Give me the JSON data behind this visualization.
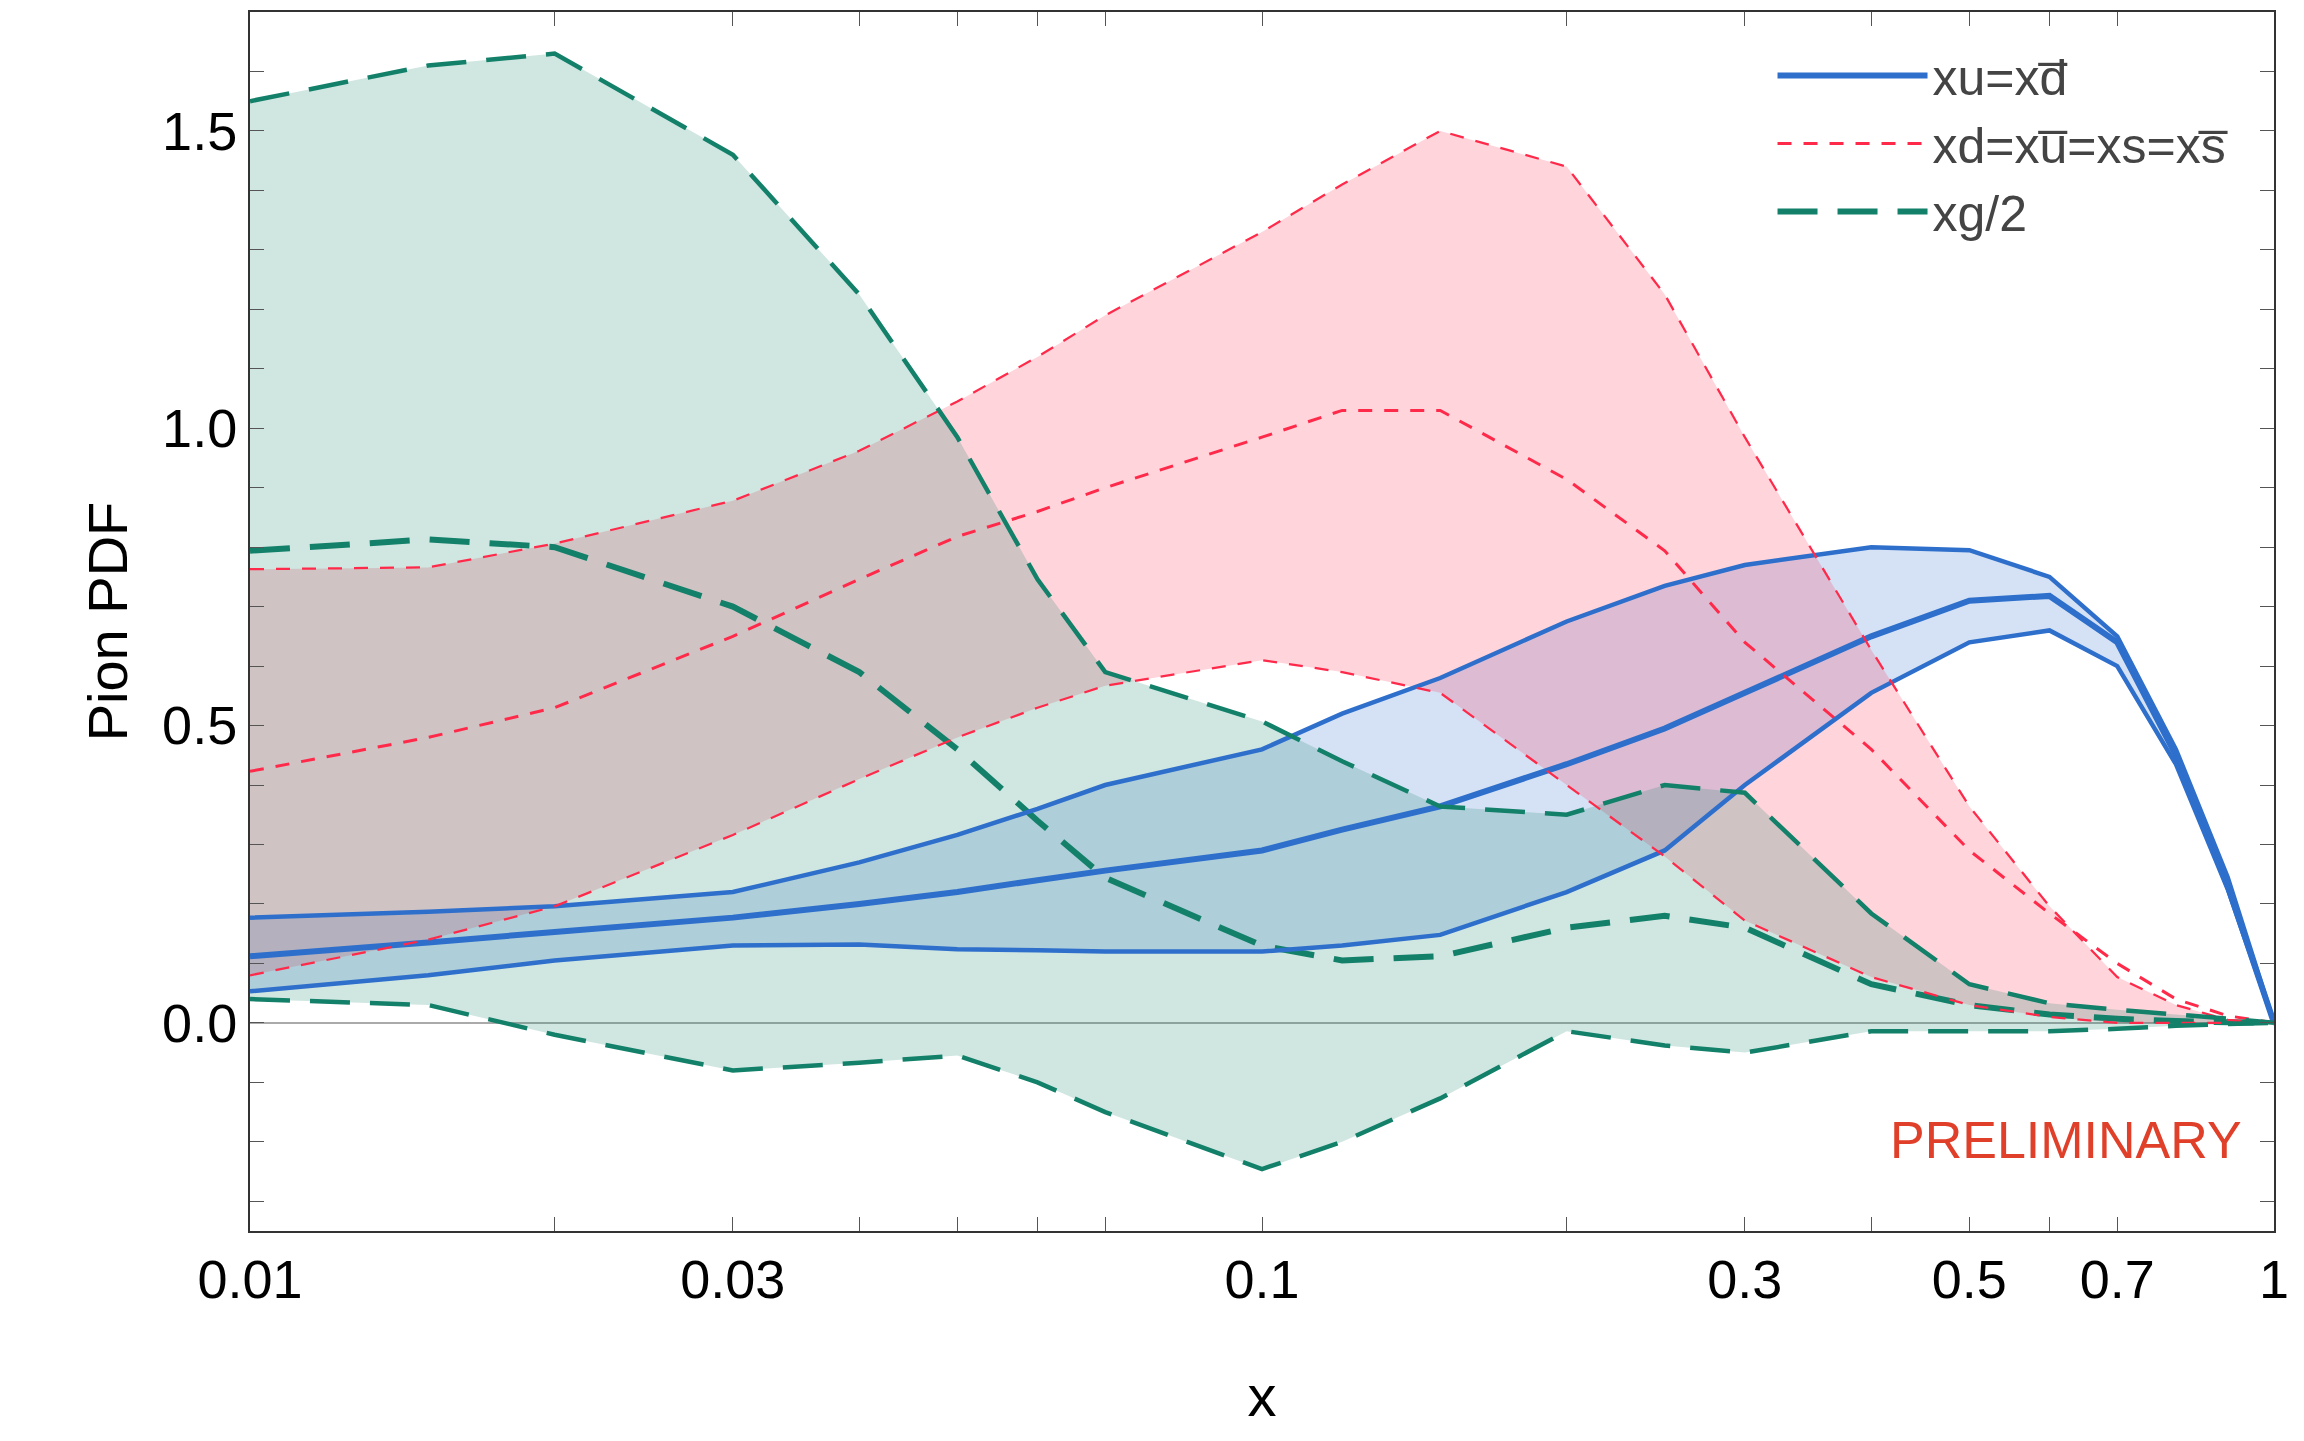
{
  "chart_data": {
    "type": "line",
    "xlabel": "x",
    "ylabel": "Pion PDF",
    "x": [
      0.01,
      0.015,
      0.02,
      0.03,
      0.04,
      0.05,
      0.06,
      0.07,
      0.1,
      0.12,
      0.15,
      0.2,
      0.25,
      0.3,
      0.4,
      0.5,
      0.6,
      0.7,
      0.8,
      0.9,
      1
    ],
    "series": [
      {
        "name": "xu=xd̅",
        "color": "#2e6fcc",
        "line_style": "solid",
        "values": [
          0.112,
          0.135,
          0.153,
          0.177,
          0.2,
          0.22,
          0.24,
          0.256,
          0.29,
          0.325,
          0.364,
          0.435,
          0.495,
          0.555,
          0.65,
          0.71,
          0.718,
          0.64,
          0.45,
          0.23,
          0
        ],
        "lower": [
          0.053,
          0.08,
          0.105,
          0.13,
          0.132,
          0.124,
          0.122,
          0.12,
          0.12,
          0.13,
          0.148,
          0.22,
          0.29,
          0.4,
          0.555,
          0.64,
          0.66,
          0.6,
          0.435,
          0.225,
          0
        ],
        "upper": [
          0.177,
          0.187,
          0.196,
          0.22,
          0.27,
          0.316,
          0.36,
          0.4,
          0.46,
          0.52,
          0.58,
          0.675,
          0.735,
          0.77,
          0.8,
          0.795,
          0.75,
          0.65,
          0.46,
          0.245,
          0
        ]
      },
      {
        "name": "xd=xu̅=xs=xs̅",
        "color": "#ff2a4a",
        "line_style": "dotted",
        "values": [
          0.423,
          0.48,
          0.53,
          0.65,
          0.746,
          0.818,
          0.86,
          0.9,
          0.985,
          1.03,
          1.03,
          0.914,
          0.794,
          0.64,
          0.46,
          0.29,
          0.184,
          0.1,
          0.04,
          0.012,
          0
        ],
        "lower": [
          0.08,
          0.14,
          0.196,
          0.316,
          0.41,
          0.48,
          0.53,
          0.567,
          0.61,
          0.59,
          0.555,
          0.4,
          0.28,
          0.172,
          0.077,
          0.03,
          0.01,
          0,
          0,
          0,
          0
        ],
        "upper": [
          0.763,
          0.766,
          0.806,
          0.878,
          0.962,
          1.045,
          1.12,
          1.19,
          1.33,
          1.41,
          1.5,
          1.44,
          1.225,
          0.985,
          0.627,
          0.364,
          0.196,
          0.077,
          0.03,
          0.005,
          0
        ]
      },
      {
        "name": "xg/2",
        "color": "#13806a",
        "line_style": "dashed",
        "values": [
          0.794,
          0.813,
          0.8,
          0.7,
          0.59,
          0.46,
          0.34,
          0.244,
          0.13,
          0.105,
          0.112,
          0.16,
          0.18,
          0.16,
          0.065,
          0.03,
          0.014,
          0.007,
          0.003,
          0.001,
          0
        ],
        "lower": [
          0.04,
          0.03,
          -0.02,
          -0.08,
          -0.067,
          -0.055,
          -0.1,
          -0.15,
          -0.246,
          -0.2,
          -0.127,
          -0.014,
          -0.038,
          -0.05,
          -0.014,
          -0.014,
          -0.014,
          -0.01,
          -0.005,
          -0.002,
          0
        ],
        "upper": [
          1.55,
          1.61,
          1.63,
          1.46,
          1.225,
          0.985,
          0.746,
          0.59,
          0.507,
          0.44,
          0.364,
          0.35,
          0.4,
          0.387,
          0.184,
          0.065,
          0.033,
          0.022,
          0.014,
          0.007,
          0
        ]
      },
      {
        "color": "#2e6fcc",
        "line_style": "solid",
        "values": [
          0.053,
          0.08,
          0.105,
          0.13,
          0.132,
          0.124,
          0.122,
          0.12,
          0.12,
          0.13,
          0.148,
          0.22,
          0.29,
          0.4,
          0.555,
          0.64,
          0.66,
          0.6,
          0.435,
          0.225,
          0
        ]
      },
      {
        "color": "#2e6fcc",
        "line_style": "solid",
        "values": [
          0.177,
          0.187,
          0.196,
          0.22,
          0.27,
          0.316,
          0.36,
          0.4,
          0.46,
          0.52,
          0.58,
          0.675,
          0.735,
          0.77,
          0.8,
          0.795,
          0.75,
          0.65,
          0.46,
          0.245,
          0
        ]
      },
      {
        "color": "#ff2a4a",
        "line_style": "dotted",
        "values": [
          0.08,
          0.14,
          0.196,
          0.316,
          0.41,
          0.48,
          0.53,
          0.567,
          0.61,
          0.59,
          0.555,
          0.4,
          0.28,
          0.172,
          0.077,
          0.03,
          0.01,
          0,
          0,
          0,
          0
        ]
      },
      {
        "color": "#ff2a4a",
        "line_style": "dotted",
        "values": [
          0.763,
          0.766,
          0.806,
          0.878,
          0.962,
          1.045,
          1.12,
          1.19,
          1.33,
          1.41,
          1.5,
          1.44,
          1.225,
          0.985,
          0.627,
          0.364,
          0.196,
          0.077,
          0.03,
          0.005,
          0
        ]
      },
      {
        "color": "#13806a",
        "line_style": "dashed",
        "values": [
          0.04,
          0.03,
          -0.02,
          -0.08,
          -0.067,
          -0.055,
          -0.1,
          -0.15,
          -0.246,
          -0.2,
          -0.127,
          -0.014,
          -0.038,
          -0.05,
          -0.014,
          -0.014,
          -0.014,
          -0.01,
          -0.005,
          -0.002,
          0
        ]
      },
      {
        "color": "#13806a",
        "line_style": "dashed",
        "values": [
          1.55,
          1.61,
          1.63,
          1.46,
          1.225,
          0.985,
          0.746,
          0.59,
          0.507,
          0.44,
          0.364,
          0.35,
          0.4,
          0.387,
          0.184,
          0.065,
          0.033,
          0.022,
          0.014,
          0.007,
          0
        ]
      }
    ],
    "log": "x",
    "xlim": [
      0.01,
      1
    ],
    "xticks": [
      0.01,
      {
        "value": 0.02,
        "label": null
      },
      0.03,
      {
        "value": 0.04,
        "label": null
      },
      {
        "value": 0.05,
        "label": null
      },
      {
        "value": 0.06,
        "label": null
      },
      {
        "value": 0.07,
        "label": null
      },
      0.1,
      {
        "value": 0.2,
        "label": null
      },
      0.3,
      {
        "value": 0.4,
        "label": null
      },
      0.5,
      {
        "value": 0.6,
        "label": null
      },
      0.7,
      1
    ],
    "ylim": [
      -0.35,
      1.7
    ],
    "yticks": [
      {
        "value": -0.3,
        "label": null
      },
      {
        "value": -0.2,
        "label": null
      },
      {
        "value": -0.1,
        "label": null
      },
      {
        "value": 0,
        "label": "0.0"
      },
      {
        "value": 0.1,
        "label": null
      },
      {
        "value": 0.2,
        "label": null
      },
      {
        "value": 0.3,
        "label": null
      },
      {
        "value": 0.4,
        "label": null
      },
      0.5,
      {
        "value": 0.6,
        "label": null
      },
      {
        "value": 0.7,
        "label": null
      },
      {
        "value": 0.8,
        "label": null
      },
      {
        "value": 0.9,
        "label": null
      },
      {
        "value": 1,
        "label": "1.0"
      },
      {
        "value": 1.1,
        "label": null
      },
      {
        "value": 1.2,
        "label": null
      },
      {
        "value": 1.3,
        "label": null
      },
      {
        "value": 1.4,
        "label": null
      },
      1.5,
      {
        "value": 1.6,
        "label": null
      }
    ],
    "ref_lines": [
      {
        "axis": "y",
        "value": 0,
        "color": "#aaaaaa"
      }
    ],
    "grid": false,
    "legend": "top right",
    "annotations": [
      "PRELIMINARY"
    ]
  }
}
